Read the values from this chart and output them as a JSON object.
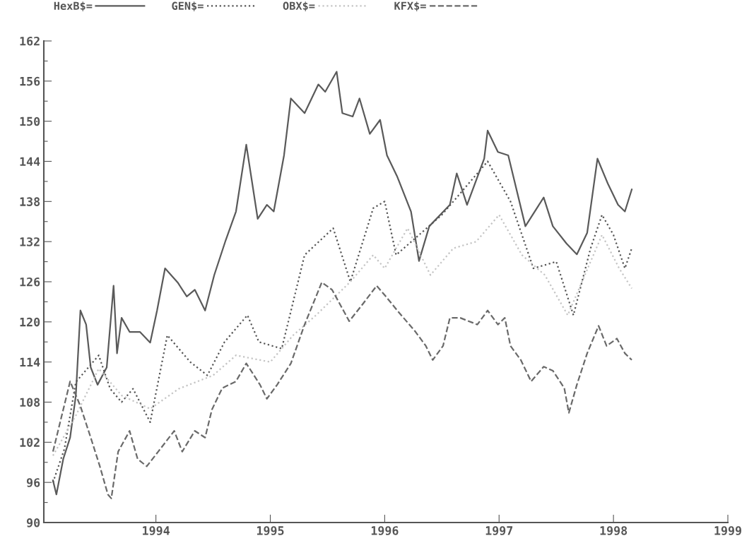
{
  "chart_data": {
    "type": "line",
    "legend": "top",
    "grid": false,
    "xlim": [
      1993.02,
      1999.0
    ],
    "xticks": [
      1994,
      1995,
      1996,
      1997,
      1998,
      1999
    ],
    "ylim": [
      90,
      162
    ],
    "yticks": [
      90,
      {
        "value": 93,
        "label": null
      },
      96,
      {
        "value": 99,
        "label": null
      },
      102,
      {
        "value": 105,
        "label": null
      },
      108,
      {
        "value": 111,
        "label": null
      },
      114,
      {
        "value": 117,
        "label": null
      },
      120,
      {
        "value": 123,
        "label": null
      },
      126,
      {
        "value": 129,
        "label": null
      },
      132,
      {
        "value": 135,
        "label": null
      },
      138,
      {
        "value": 141,
        "label": null
      },
      144,
      {
        "value": 147,
        "label": null
      },
      150,
      {
        "value": 153,
        "label": null
      },
      156,
      {
        "value": 159,
        "label": null
      },
      162
    ],
    "series": [
      {
        "name": "HexB$=",
        "color": "#5a5a5a",
        "line_style": "solid",
        "x": [
          1993.1,
          1993.13,
          1993.19,
          1993.25,
          1993.3,
          1993.34,
          1993.39,
          1993.43,
          1993.49,
          1993.57,
          1993.63,
          1993.66,
          1993.7,
          1993.77,
          1993.86,
          1993.95,
          1994.01,
          1994.08,
          1994.19,
          1994.27,
          1994.34,
          1994.43,
          1994.51,
          1994.61,
          1994.7,
          1994.79,
          1994.89,
          1994.97,
          1995.03,
          1995.12,
          1995.18,
          1995.3,
          1995.42,
          1995.48,
          1995.58,
          1995.63,
          1995.72,
          1995.78,
          1995.87,
          1995.96,
          1996.02,
          1996.11,
          1996.23,
          1996.3,
          1996.39,
          1996.57,
          1996.63,
          1996.72,
          1996.87,
          1996.9,
          1996.99,
          1997.08,
          1997.23,
          1997.39,
          1997.47,
          1997.59,
          1997.68,
          1997.77,
          1997.86,
          1997.95,
          1998.04,
          1998.1,
          1998.16
        ],
        "values": [
          96.3,
          94.2,
          99.5,
          102.7,
          109,
          121.7,
          119.6,
          113.2,
          110.6,
          113.2,
          125.4,
          115.3,
          120.6,
          118.5,
          118.5,
          116.9,
          121.7,
          128,
          125.9,
          123.8,
          124.8,
          121.7,
          127,
          132.2,
          136.5,
          146.5,
          135.4,
          137.5,
          136.5,
          144.9,
          153.4,
          151.2,
          155.5,
          154.4,
          157.4,
          151.2,
          150.7,
          153.4,
          148.1,
          150.2,
          144.9,
          141.7,
          136.5,
          129.1,
          134.3,
          137.5,
          142.2,
          137.5,
          144.4,
          148.6,
          145.4,
          144.9,
          134.3,
          138.6,
          134.3,
          131.7,
          130.1,
          133.3,
          144.4,
          140.7,
          137.5,
          136.5,
          139.8
        ]
      },
      {
        "name": "GEN$=",
        "color": "#555555",
        "line_style": "dotted",
        "x": [
          1993.1,
          1993.2,
          1993.3,
          1993.4,
          1993.5,
          1993.6,
          1993.7,
          1993.8,
          1993.95,
          1994.1,
          1994.3,
          1994.45,
          1994.6,
          1994.8,
          1994.9,
          1995.1,
          1995.3,
          1995.55,
          1995.7,
          1995.9,
          1996.0,
          1996.1,
          1996.3,
          1996.5,
          1996.8,
          1996.9,
          1997.1,
          1997.3,
          1997.5,
          1997.65,
          1997.8,
          1997.9,
          1998.0,
          1998.1,
          1998.16
        ],
        "values": [
          96,
          101,
          111,
          113,
          115,
          110,
          108,
          110,
          105,
          118,
          114,
          112,
          117,
          121,
          117,
          116,
          130,
          134,
          126,
          137,
          138,
          130,
          133,
          136,
          142,
          144,
          138,
          128,
          129,
          121,
          131,
          136,
          133,
          128,
          131
        ]
      },
      {
        "name": "OBX$=",
        "color": "#c4c4c4",
        "line_style": "dotted",
        "x": [
          1993.1,
          1993.3,
          1993.5,
          1993.7,
          1993.95,
          1994.2,
          1994.5,
          1994.7,
          1995.0,
          1995.2,
          1995.4,
          1995.7,
          1995.9,
          1996.0,
          1996.2,
          1996.4,
          1996.6,
          1996.8,
          1997.0,
          1997.2,
          1997.4,
          1997.6,
          1997.7,
          1997.9,
          1998.05,
          1998.16
        ],
        "values": [
          100,
          106,
          113,
          109,
          107,
          110,
          112,
          115,
          114,
          118,
          121,
          126,
          130,
          128,
          134,
          127,
          131,
          132,
          136,
          130,
          127,
          121,
          125,
          133,
          128,
          125
        ]
      },
      {
        "name": "KFX$=",
        "color": "#6a6a6a",
        "line_style": "dashed",
        "x": [
          1993.1,
          1993.16,
          1993.25,
          1993.34,
          1993.43,
          1993.51,
          1993.58,
          1993.61,
          1993.67,
          1993.77,
          1993.84,
          1993.92,
          1994.02,
          1994.16,
          1994.23,
          1994.34,
          1994.43,
          1994.49,
          1994.58,
          1994.7,
          1994.79,
          1994.91,
          1994.97,
          1995.06,
          1995.18,
          1995.3,
          1995.45,
          1995.54,
          1995.69,
          1995.81,
          1995.93,
          1996.01,
          1996.11,
          1996.27,
          1996.36,
          1996.42,
          1996.51,
          1996.57,
          1996.66,
          1996.81,
          1996.9,
          1996.99,
          1997.05,
          1997.1,
          1997.19,
          1997.28,
          1997.39,
          1997.47,
          1997.57,
          1997.61,
          1997.68,
          1997.77,
          1997.87,
          1997.94,
          1998.03,
          1998.1,
          1998.16
        ],
        "values": [
          100.6,
          104.8,
          111.1,
          107.4,
          102.7,
          98.4,
          94.2,
          93.6,
          100.6,
          103.7,
          99.5,
          98.4,
          100.6,
          103.7,
          100.6,
          103.7,
          102.7,
          106.9,
          110.1,
          111.1,
          113.8,
          110.6,
          108.5,
          110.6,
          113.8,
          119.6,
          125.9,
          124.8,
          120.1,
          122.7,
          125.4,
          123.8,
          121.7,
          118.5,
          116.4,
          114.3,
          116.4,
          120.6,
          120.6,
          119.6,
          121.7,
          119.6,
          120.6,
          116.4,
          114.3,
          111.1,
          113.3,
          112.7,
          110.1,
          106.4,
          110.6,
          115.3,
          119.4,
          116.4,
          117.5,
          115.3,
          114.3
        ]
      }
    ]
  }
}
